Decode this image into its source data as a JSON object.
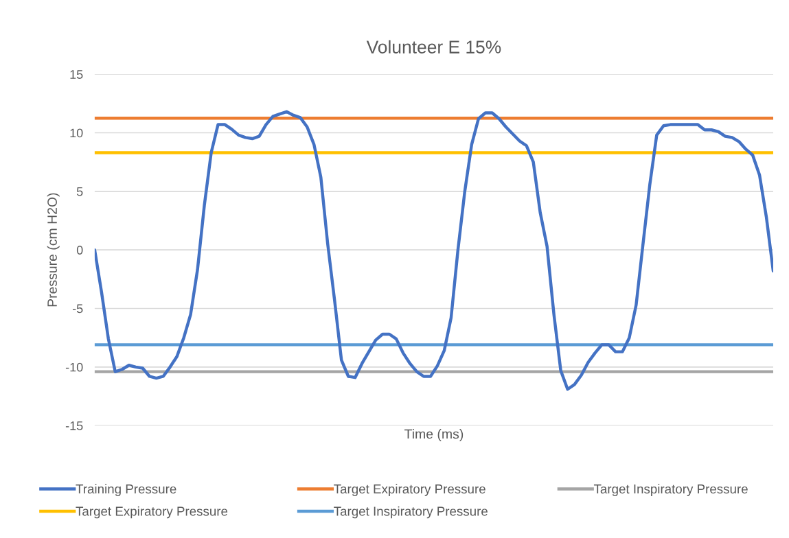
{
  "chart_data": {
    "type": "line",
    "title": "Volunteer E 15%",
    "xlabel": "Time (ms)",
    "ylabel": "Pressure (cm H2O)",
    "categories": [
      null,
      null,
      null,
      null,
      null,
      null,
      null,
      null,
      null,
      null,
      null,
      null,
      null,
      null,
      null,
      null,
      null,
      null,
      null,
      null,
      null,
      null,
      null,
      null,
      null,
      null,
      null,
      null,
      null,
      null,
      null,
      null,
      null,
      null,
      null,
      null,
      null,
      null,
      null,
      null,
      null,
      null,
      null,
      null,
      null,
      null,
      null,
      null,
      null,
      null,
      null,
      null,
      null,
      null,
      null,
      null,
      null,
      null,
      null,
      null,
      null,
      null,
      null,
      null,
      null,
      null,
      null,
      null,
      null,
      null,
      null,
      null,
      null,
      null,
      null,
      null,
      null,
      null,
      null,
      null,
      null,
      null,
      null,
      null,
      null,
      null,
      null,
      null,
      null,
      null,
      null,
      null,
      null,
      null,
      null,
      null,
      null,
      null,
      null,
      null
    ],
    "series": [
      {
        "name": "Training Pressure",
        "color": "#4472c4",
        "values": [
          0,
          -3.6,
          -7.6,
          -10.4,
          -10.2,
          -9.85,
          -10,
          -10.1,
          -10.8,
          -10.95,
          -10.8,
          -10,
          -9.1,
          -7.5,
          -5.5,
          -1.7,
          3.8,
          8.3,
          10.7,
          10.7,
          10.3,
          9.8,
          9.6,
          9.5,
          9.7,
          10.7,
          11.4,
          11.6,
          11.8,
          11.5,
          11.3,
          10.5,
          9,
          6.2,
          0.5,
          -4.3,
          -9.4,
          -10.8,
          -10.9,
          -9.7,
          -8.7,
          -7.7,
          -7.2,
          -7.2,
          -7.6,
          -8.8,
          -9.7,
          -10.4,
          -10.8,
          -10.8,
          -9.9,
          -8.6,
          -5.8,
          0,
          5,
          9,
          11.2,
          11.7,
          11.7,
          11.2,
          10.5,
          9.9,
          9.3,
          8.9,
          7.5,
          3.2,
          0.3,
          -5.5,
          -10.3,
          -11.9,
          -11.5,
          -10.7,
          -9.6,
          -8.8,
          -8.1,
          -8.1,
          -8.7,
          -8.7,
          -7.5,
          -4.7,
          0.5,
          5.6,
          9.8,
          10.6,
          10.7,
          10.7,
          10.7,
          10.7,
          10.7,
          10.25,
          10.25,
          10.1,
          9.7,
          9.6,
          9.25,
          8.6,
          8.1,
          6.4,
          2.8,
          -1.8
        ]
      }
    ],
    "ref_lines": [
      {
        "axis": "y",
        "value": 11.25,
        "label": "Target Expiratory Pressure",
        "color": "#ed7d31"
      },
      {
        "axis": "y",
        "value": -10.4,
        "label": "Target Inspiratory Pressure",
        "color": "#a5a5a5"
      },
      {
        "axis": "y",
        "value": 8.3,
        "label": "Target Expiratory Pressure",
        "color": "#ffc000"
      },
      {
        "axis": "y",
        "value": -8.1,
        "label": "Target Inspiratory Pressure",
        "color": "#5b9bd5"
      }
    ],
    "ylim": [
      -15,
      15
    ],
    "yticks": [
      -15,
      -10,
      -5,
      0,
      5,
      10,
      15
    ],
    "grid": "y",
    "legend": "bottom"
  }
}
